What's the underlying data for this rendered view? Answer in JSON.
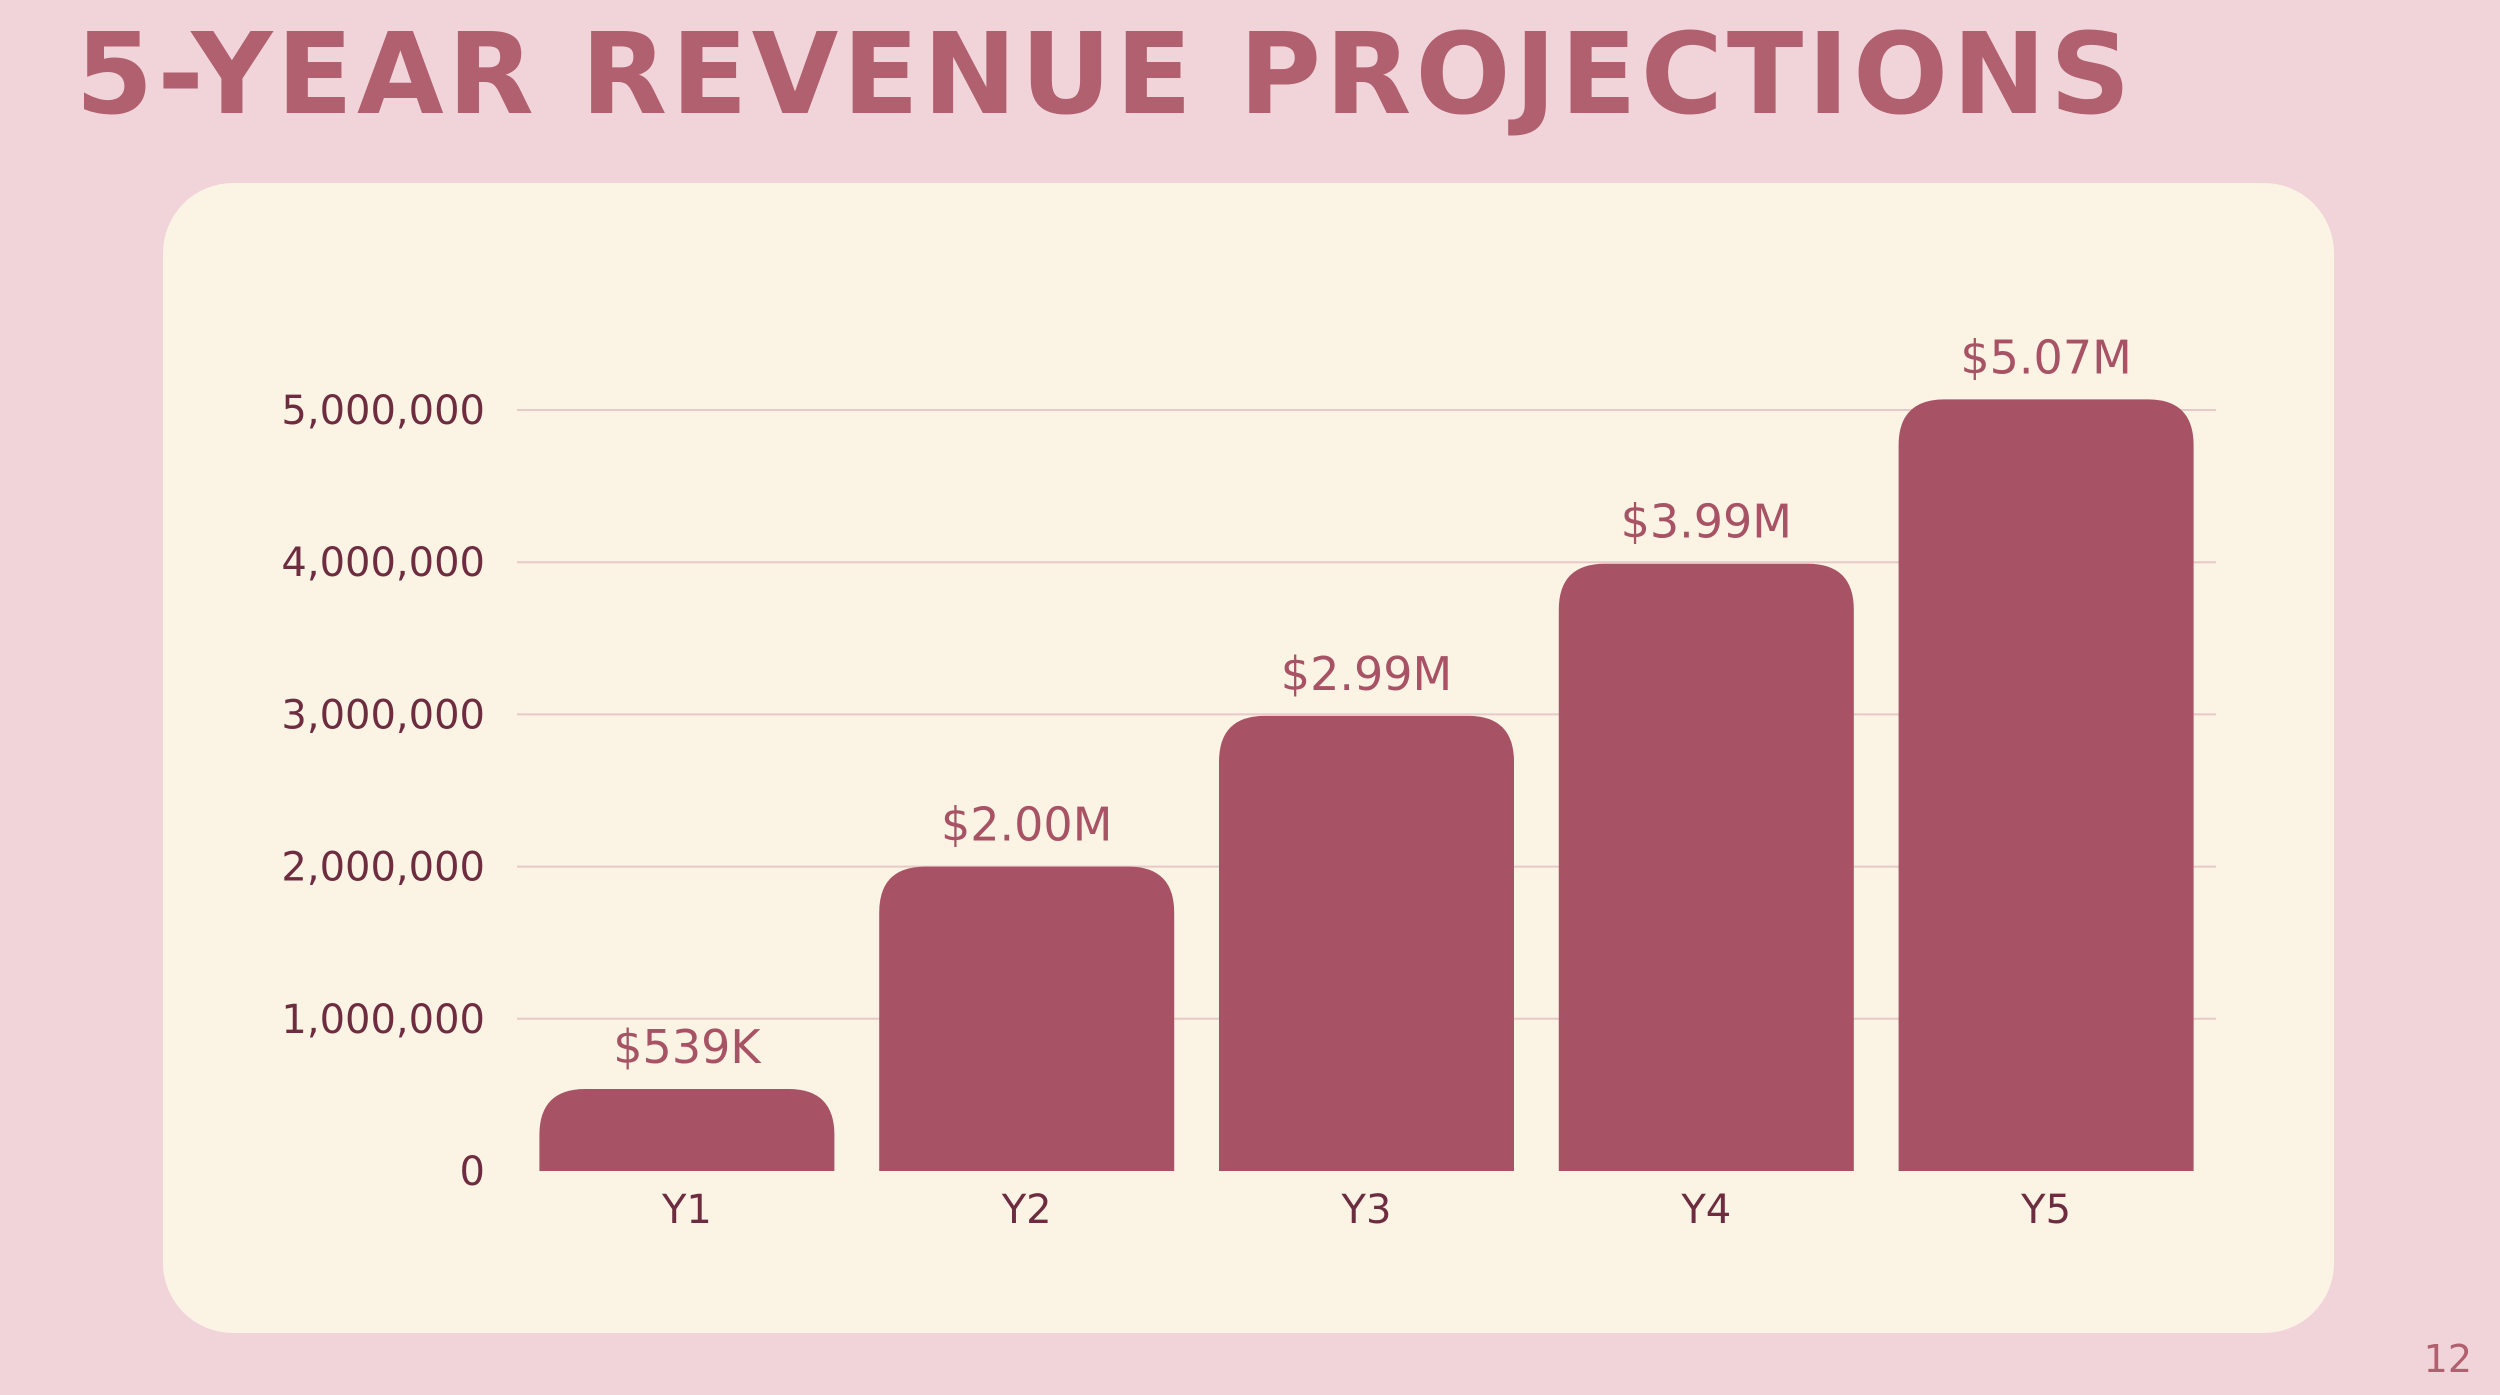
{
  "slide": {
    "title": "5-Year Revenue Projections",
    "page_number": "12"
  },
  "colors": {
    "background": "#f1d4d9",
    "card": "#fbf3e4",
    "bar": "#a85266",
    "title": "#b0606f",
    "axis_text": "#6e2c40"
  },
  "chart_data": {
    "type": "bar",
    "title": "5-Year Revenue Projections",
    "categories": [
      "Y1",
      "Y2",
      "Y3",
      "Y4",
      "Y5"
    ],
    "values": [
      539000,
      2000000,
      2990000,
      3990000,
      5070000
    ],
    "data_labels": [
      "$539K",
      "$2.00M",
      "$2.99M",
      "$3.99M",
      "$5.07M"
    ],
    "ylim": [
      0,
      5000000
    ],
    "yticks": [
      0,
      1000000,
      2000000,
      3000000,
      4000000,
      5000000
    ],
    "ytick_labels": [
      "0",
      "1,000,000",
      "2,000,000",
      "3,000,000",
      "4,000,000",
      "5,000,000"
    ],
    "xlabel": "",
    "ylabel": "",
    "grid": true,
    "legend": "none"
  }
}
